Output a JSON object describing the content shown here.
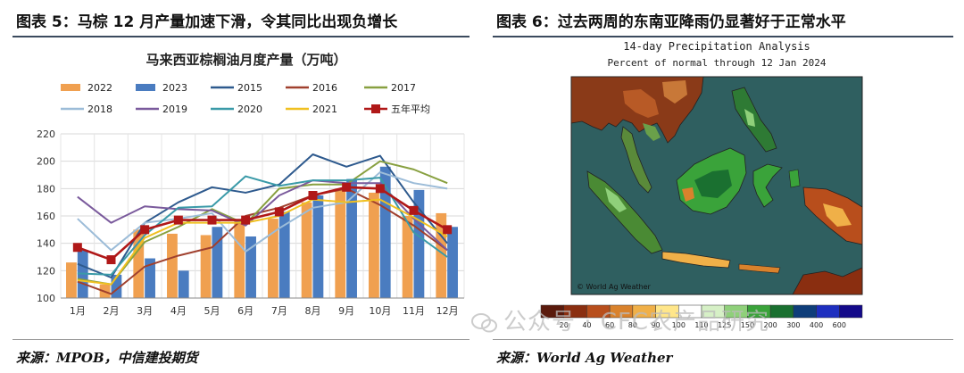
{
  "left_panel": {
    "title": "图表 5：马棕 12 月产量加速下滑，令其同比出现负增长",
    "source": "来源：MPOB，中信建投期货"
  },
  "right_panel": {
    "title": "图表 6：过去两周的东南亚降雨仍显著好于正常水平",
    "source": "来源：World Ag Weather",
    "map_title": "14-day Precipitation Analysis",
    "map_subtitle": "Percent of normal through 12 Jan 2024",
    "map_credit": "© World Ag Weather",
    "colorbar_labels": [
      "20",
      "40",
      "60",
      "80",
      "90",
      "100",
      "110",
      "125",
      "150",
      "200",
      "300",
      "400",
      "600"
    ],
    "colorbar_colors": [
      "#5a1a0c",
      "#8a2e10",
      "#b84e1c",
      "#d9822c",
      "#f0b048",
      "#ffe68a",
      "#ffffff",
      "#d6f0c6",
      "#8fd07a",
      "#3aa33a",
      "#1a7030",
      "#0f3e7a",
      "#1e2fbf",
      "#140a8a"
    ]
  },
  "watermark": "公众号 · CFC农产品研究",
  "chart_data": {
    "type": "bar",
    "title": "马来西亚棕榈油月度产量（万吨）",
    "categories": [
      "1月",
      "2月",
      "3月",
      "4月",
      "5月",
      "6月",
      "7月",
      "8月",
      "9月",
      "10月",
      "11月",
      "12月"
    ],
    "ylim": [
      100,
      220
    ],
    "yticks": [
      100,
      120,
      140,
      160,
      180,
      200,
      220
    ],
    "grid": true,
    "legend_position": "top",
    "bars": [
      {
        "name": "2022",
        "color": "#f0a050",
        "values": [
          126,
          110,
          150,
          147,
          146,
          157,
          158,
          170,
          180,
          177,
          160,
          162
        ]
      },
      {
        "name": "2023",
        "color": "#4a7cc0",
        "values": [
          135,
          117,
          129,
          120,
          152,
          145,
          163,
          175,
          187,
          196,
          179,
          152
        ]
      }
    ],
    "lines": [
      {
        "name": "2015",
        "color": "#2e5a8e",
        "values": [
          125,
          115,
          155,
          170,
          181,
          177,
          183,
          205,
          196,
          204,
          170,
          140
        ]
      },
      {
        "name": "2016",
        "color": "#a0402e",
        "values": [
          112,
          103,
          123,
          131,
          137,
          160,
          166,
          175,
          180,
          168,
          153,
          135
        ]
      },
      {
        "name": "2017",
        "color": "#88a040",
        "values": [
          114,
          110,
          141,
          152,
          165,
          154,
          180,
          183,
          183,
          200,
          194,
          184
        ]
      },
      {
        "name": "2018",
        "color": "#9cbcd8",
        "values": [
          158,
          135,
          155,
          158,
          162,
          134,
          151,
          166,
          170,
          192,
          184,
          180
        ]
      },
      {
        "name": "2019",
        "color": "#7a5a9c",
        "values": [
          174,
          155,
          167,
          165,
          164,
          153,
          175,
          186,
          184,
          184,
          158,
          135
        ]
      },
      {
        "name": "2020",
        "color": "#3a9aa8",
        "values": [
          118,
          117,
          146,
          166,
          167,
          189,
          182,
          186,
          186,
          188,
          148,
          130
        ]
      },
      {
        "name": "2021",
        "color": "#f0c020",
        "values": [
          113,
          110,
          144,
          155,
          155,
          155,
          160,
          172,
          170,
          172,
          159,
          145
        ]
      },
      {
        "name": "五年平均",
        "color": "#b01818",
        "marker": "square",
        "values": [
          137,
          128,
          150,
          157,
          157,
          157,
          163,
          175,
          181,
          180,
          164,
          150
        ]
      }
    ]
  }
}
